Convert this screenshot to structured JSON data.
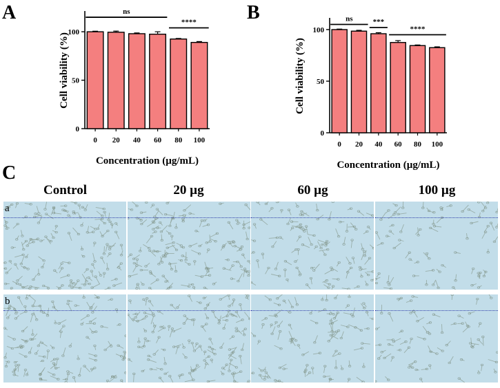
{
  "panels": {
    "a_letter": "A",
    "b_letter": "B",
    "c_letter": "C"
  },
  "colors": {
    "bar_fill": "#f47f7f",
    "bar_stroke": "#000000",
    "micro_bg": "#c2dde9",
    "dash_line": "#2a3aa8"
  },
  "chart_data": [
    {
      "type": "bar",
      "categories": [
        "0",
        "20",
        "40",
        "60",
        "80",
        "100"
      ],
      "values": [
        100,
        99.5,
        98,
        97.5,
        92.5,
        89
      ],
      "errors": [
        0.6,
        1.2,
        0.8,
        2.5,
        0.6,
        0.9
      ],
      "title": "",
      "xlabel": "Concentration (µg/mL)",
      "ylabel": "Cell viability (%)",
      "ylim": [
        0,
        120
      ],
      "yticks": [
        0,
        50,
        100
      ],
      "significance": [
        {
          "label": "ns",
          "from": 0,
          "to": 3,
          "y": 115
        },
        {
          "label": "****",
          "from": 4,
          "to": 5,
          "y": 104
        }
      ]
    },
    {
      "type": "bar",
      "categories": [
        "0",
        "20",
        "40",
        "60",
        "80",
        "100"
      ],
      "values": [
        100,
        98.5,
        96,
        87.5,
        84.5,
        82.5
      ],
      "errors": [
        0.5,
        0.8,
        1.0,
        1.8,
        0.6,
        0.8
      ],
      "title": "",
      "xlabel": "Concentration (µg/mL)",
      "ylabel": "Cell viability (%)",
      "ylim": [
        0,
        110
      ],
      "yticks": [
        0,
        50,
        100
      ],
      "significance": [
        {
          "label": "ns",
          "from": 0,
          "to": 1,
          "y": 105
        },
        {
          "label": "***",
          "from": 2,
          "to": 2,
          "y": 102
        },
        {
          "label": "****",
          "from": 3,
          "to": 5,
          "y": 95
        }
      ]
    }
  ],
  "micrographs": {
    "column_headers": [
      "Control",
      "20 µg",
      "60 µg",
      "100 µg"
    ],
    "row_labels": [
      "a",
      "b"
    ],
    "density": [
      [
        1.0,
        1.0,
        0.75,
        0.55
      ],
      [
        0.9,
        0.95,
        0.7,
        0.5
      ]
    ]
  }
}
